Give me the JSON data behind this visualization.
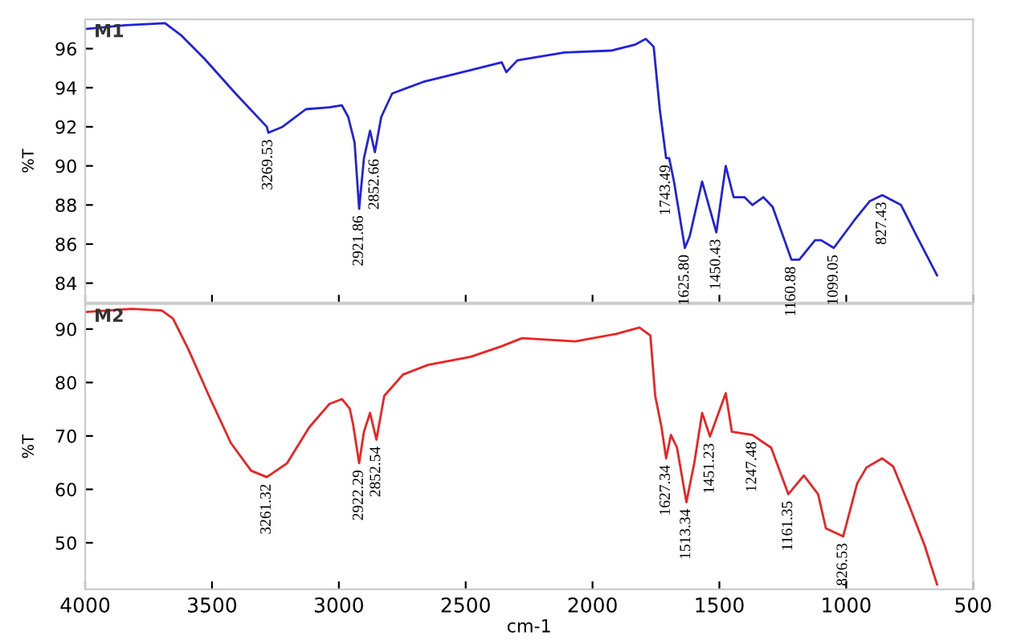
{
  "chart_data": [
    {
      "type": "line",
      "ylabel": "%T",
      "xlim": [
        4000,
        500
      ],
      "xticks": [
        4000,
        3500,
        3000,
        2500,
        2000,
        1500,
        1000,
        500
      ],
      "ylim": [
        83.0,
        97.5
      ],
      "yticks": [
        84,
        86,
        88,
        90,
        92,
        94,
        96
      ],
      "tick_labels": "y",
      "grid": false,
      "series": [
        {
          "name": "M1",
          "color": "#2222dd",
          "x": [
            4000,
            3840,
            3685,
            3623,
            3531,
            3407,
            3284,
            3278,
            3222,
            3130,
            3037,
            2988,
            2963,
            2938,
            2920,
            2901,
            2877,
            2858,
            2833,
            2790,
            2667,
            2481,
            2358,
            2340,
            2296,
            2111,
            1926,
            1833,
            1790,
            1759,
            1735,
            1710,
            1698,
            1679,
            1636,
            1617,
            1568,
            1525,
            1512,
            1475,
            1444,
            1401,
            1370,
            1327,
            1290,
            1216,
            1185,
            1123,
            1099,
            1049,
            969,
            907,
            858,
            784,
            722,
            642
          ],
          "values": [
            97.0,
            97.2,
            97.3,
            96.7,
            95.5,
            93.7,
            92.0,
            91.7,
            92.0,
            92.9,
            93.0,
            93.1,
            92.5,
            91.2,
            87.8,
            90.4,
            91.8,
            90.7,
            92.5,
            93.7,
            94.3,
            94.9,
            95.3,
            94.8,
            95.4,
            95.8,
            95.9,
            96.2,
            96.5,
            96.1,
            92.9,
            90.4,
            90.4,
            89.2,
            85.8,
            86.4,
            89.2,
            87.2,
            86.6,
            90.0,
            88.4,
            88.4,
            88.0,
            88.4,
            87.9,
            85.2,
            85.2,
            86.2,
            86.2,
            85.8,
            87.2,
            88.2,
            88.5,
            88.0,
            86.4,
            84.4
          ]
        }
      ],
      "annotations": [
        {
          "text": "3269.53",
          "x": 3278,
          "y": 91.7
        },
        {
          "text": "2921.86",
          "x": 2920,
          "y": 87.8
        },
        {
          "text": "2852.66",
          "x": 2858,
          "y": 90.7
        },
        {
          "text": "1743.49",
          "x": 1710,
          "y": 90.4
        },
        {
          "text": "1625.80",
          "x": 1636,
          "y": 85.8
        },
        {
          "text": "1450.43",
          "x": 1512,
          "y": 86.6
        },
        {
          "text": "1160.88",
          "x": 1216,
          "y": 85.2
        },
        {
          "text": "1099.05",
          "x": 1049,
          "y": 85.8
        },
        {
          "text": "827.43",
          "x": 858,
          "y": 88.5
        }
      ]
    },
    {
      "type": "line",
      "ylabel": "%T",
      "xlabel": "cm-1",
      "xlim": [
        4000,
        500
      ],
      "xticks": [
        4000,
        3500,
        3000,
        2500,
        2000,
        1500,
        1000,
        500
      ],
      "ylim": [
        41.3,
        94.7
      ],
      "yticks": [
        50,
        60,
        70,
        80,
        90
      ],
      "grid": false,
      "series": [
        {
          "name": "M2",
          "color": "#ee2222",
          "x": [
            4000,
            3815,
            3698,
            3654,
            3593,
            3512,
            3426,
            3346,
            3284,
            3204,
            3117,
            3037,
            2988,
            2957,
            2944,
            2920,
            2901,
            2877,
            2852,
            2821,
            2747,
            2648,
            2481,
            2358,
            2278,
            2068,
            1907,
            1815,
            1772,
            1753,
            1728,
            1710,
            1691,
            1667,
            1630,
            1599,
            1568,
            1537,
            1475,
            1451,
            1370,
            1296,
            1228,
            1167,
            1111,
            1080,
            1012,
            957,
            920,
            858,
            815,
            753,
            691,
            642
          ],
          "values": [
            93.2,
            93.8,
            93.5,
            92.0,
            86.2,
            77.5,
            68.7,
            63.5,
            62.3,
            64.9,
            71.6,
            76.0,
            76.9,
            75.1,
            72.2,
            64.9,
            70.8,
            74.3,
            69.3,
            77.5,
            81.5,
            83.3,
            84.8,
            86.8,
            88.3,
            87.7,
            89.1,
            90.3,
            88.8,
            77.5,
            71.6,
            65.8,
            70.2,
            67.8,
            57.6,
            64.9,
            74.3,
            69.9,
            78.0,
            70.8,
            70.2,
            67.8,
            59.1,
            62.6,
            59.1,
            52.7,
            51.2,
            61.1,
            64.1,
            65.8,
            64.3,
            57.1,
            49.5,
            42.2
          ]
        }
      ],
      "annotations": [
        {
          "text": "3261.32",
          "x": 3284,
          "y": 62.3
        },
        {
          "text": "2922.29",
          "x": 2920,
          "y": 64.9
        },
        {
          "text": "2852.54",
          "x": 2852,
          "y": 69.3
        },
        {
          "text": "1627.34",
          "x": 1710,
          "y": 65.8
        },
        {
          "text": "1513.34",
          "x": 1630,
          "y": 57.6
        },
        {
          "text": "1451.23",
          "x": 1537,
          "y": 69.9
        },
        {
          "text": "1247.48",
          "x": 1370,
          "y": 70.2
        },
        {
          "text": "1161.35",
          "x": 1228,
          "y": 59.1
        },
        {
          "text": "826.53",
          "x": 1012,
          "y": 51.2
        }
      ]
    }
  ]
}
